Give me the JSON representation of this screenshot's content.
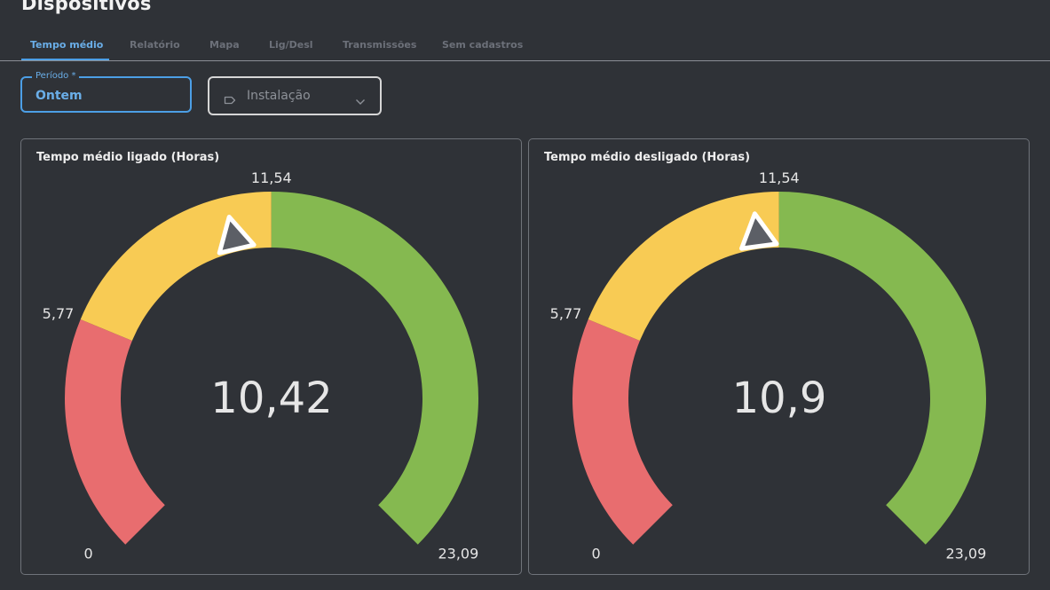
{
  "page": {
    "title": "Dispositivos"
  },
  "tabs": [
    {
      "label": "Tempo médio",
      "active": true
    },
    {
      "label": "Relatório",
      "active": false
    },
    {
      "label": "Mapa",
      "active": false
    },
    {
      "label": "Lig/Desl",
      "active": false
    },
    {
      "label": "Transmissões",
      "active": false
    },
    {
      "label": "Sem cadastros",
      "active": false
    }
  ],
  "filters": {
    "period": {
      "label": "Período *",
      "value": "Ontem"
    },
    "installation": {
      "placeholder": "Instalação",
      "icon": "tag-icon"
    }
  },
  "colors": {
    "background": "#2f3237",
    "accent": "#4c9fe6",
    "red": "#e86d6f",
    "yellow": "#f8cb54",
    "green": "#85b950"
  },
  "chart_data": [
    {
      "type": "gauge",
      "title": "Tempo médio ligado (Horas)",
      "value": 10.42,
      "value_label": "10,42",
      "min": 0,
      "max": 23.09,
      "min_label": "0",
      "max_label": "23,09",
      "bands": [
        {
          "from": 0,
          "to": 5.77,
          "color": "#e86d6f"
        },
        {
          "from": 5.77,
          "to": 11.54,
          "color": "#f8cb54"
        },
        {
          "from": 11.54,
          "to": 23.09,
          "color": "#85b950"
        }
      ],
      "tick_labels": [
        "5,77",
        "11,54"
      ]
    },
    {
      "type": "gauge",
      "title": "Tempo médio desligado (Horas)",
      "value": 10.9,
      "value_label": "10,9",
      "min": 0,
      "max": 23.09,
      "min_label": "0",
      "max_label": "23,09",
      "bands": [
        {
          "from": 0,
          "to": 5.77,
          "color": "#e86d6f"
        },
        {
          "from": 5.77,
          "to": 11.54,
          "color": "#f8cb54"
        },
        {
          "from": 11.54,
          "to": 23.09,
          "color": "#85b950"
        }
      ],
      "tick_labels": [
        "5,77",
        "11,54"
      ]
    }
  ]
}
